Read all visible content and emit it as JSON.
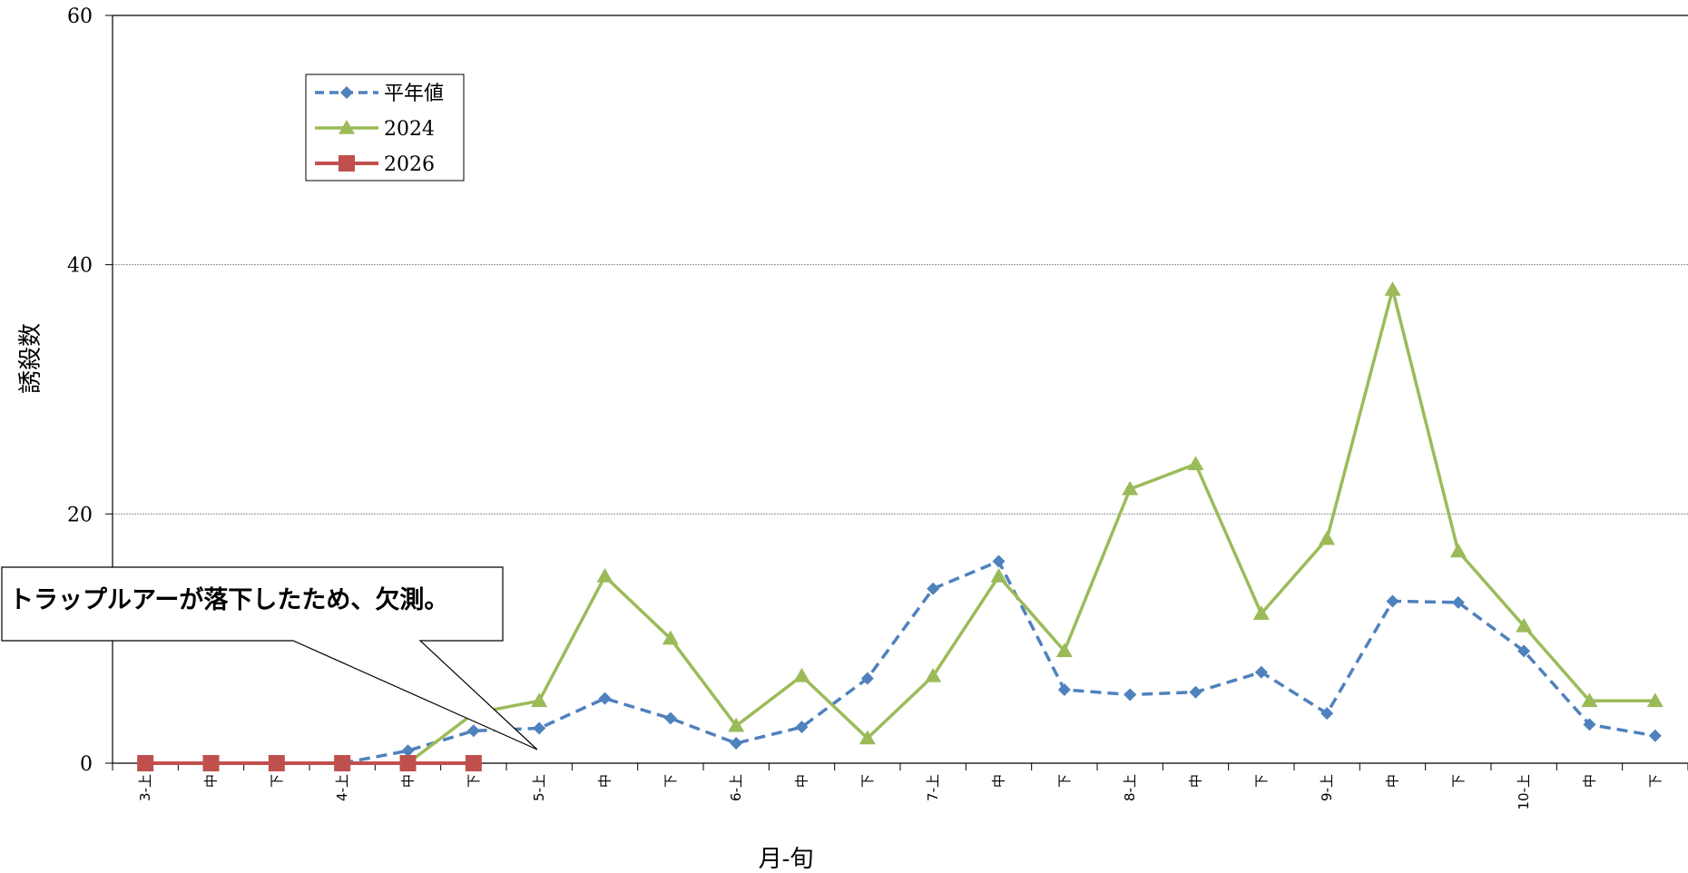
{
  "chart_data": {
    "type": "line",
    "xlabel": "月-旬",
    "ylabel": "誘殺数",
    "ylim": [
      0,
      60
    ],
    "yticks": [
      0,
      20,
      40,
      60
    ],
    "grid": true,
    "legend_position": "top-left",
    "categories": [
      "3-上",
      "中",
      "下",
      "4-上",
      "中",
      "下",
      "5-上",
      "中",
      "下",
      "6-上",
      "中",
      "下",
      "7-上",
      "中",
      "下",
      "8-上",
      "中",
      "下",
      "9-上",
      "中",
      "下",
      "10-上",
      "中",
      "下"
    ],
    "series": [
      {
        "name": "平年値",
        "color": "#4f81bd",
        "style": "dashed",
        "marker": "diamond",
        "values": [
          null,
          null,
          null,
          0,
          1,
          2.6,
          2.8,
          5.2,
          3.6,
          1.6,
          2.9,
          6.8,
          14,
          16.2,
          5.9,
          5.5,
          5.7,
          7.3,
          4,
          13,
          12.9,
          9,
          3.1,
          2.2
        ]
      },
      {
        "name": "2024",
        "color": "#9bbb59",
        "style": "solid",
        "marker": "triangle",
        "values": [
          null,
          null,
          null,
          null,
          0,
          4,
          5,
          15,
          10,
          3,
          7,
          2,
          7,
          15,
          9,
          22,
          24,
          12,
          18,
          38,
          17,
          11,
          5,
          5
        ]
      },
      {
        "name": "2026",
        "color": "#c0504d",
        "style": "solid",
        "marker": "square",
        "values": [
          0,
          0,
          0,
          0,
          0,
          0,
          null,
          null,
          null,
          null,
          null,
          null,
          null,
          null,
          null,
          null,
          null,
          null,
          null,
          null,
          null,
          null,
          null,
          null
        ]
      }
    ],
    "annotations": [
      {
        "text": "トラップルアーが落下したため、欠測。"
      }
    ]
  }
}
